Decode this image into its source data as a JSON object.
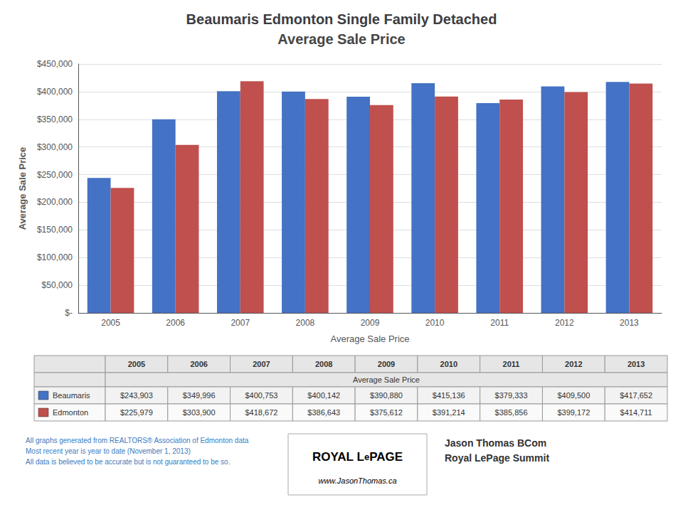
{
  "chart_data": {
    "type": "bar",
    "title": "Beaumaris Edmonton Single Family Detached",
    "subtitle": "Average Sale Price",
    "xlabel": "Average Sale Price",
    "ylabel": "Average Sale Price",
    "categories": [
      "2005",
      "2006",
      "2007",
      "2008",
      "2009",
      "2010",
      "2011",
      "2012",
      "2013"
    ],
    "series": [
      {
        "name": "Beaumaris",
        "color": "#4472C4",
        "values": [
          243903,
          349996,
          400753,
          400142,
          390880,
          415136,
          379333,
          409500,
          417652
        ],
        "value_labels": [
          "$243,903",
          "$349,996",
          "$400,753",
          "$400,142",
          "$390,880",
          "$415,136",
          "$379,333",
          "$409,500",
          "$417,652"
        ]
      },
      {
        "name": "Edmonton",
        "color": "#C0504D",
        "values": [
          225979,
          303900,
          418672,
          386643,
          375612,
          391214,
          385856,
          399172,
          414711
        ],
        "value_labels": [
          "$225,979",
          "$303,900",
          "$418,672",
          "$386,643",
          "$375,612",
          "$391,214",
          "$385,856",
          "$399,172",
          "$414,711"
        ]
      }
    ],
    "ylim": [
      0,
      450000
    ],
    "yticks": [
      {
        "value": 0,
        "label": "$-"
      },
      {
        "value": 50000,
        "label": "$50,000"
      },
      {
        "value": 100000,
        "label": "$100,000"
      },
      {
        "value": 150000,
        "label": "$150,000"
      },
      {
        "value": 200000,
        "label": "$200,000"
      },
      {
        "value": 250000,
        "label": "$250,000"
      },
      {
        "value": 300000,
        "label": "$300,000"
      },
      {
        "value": 350000,
        "label": "$350,000"
      },
      {
        "value": 400000,
        "label": "$400,000"
      },
      {
        "value": 450000,
        "label": "$450,000"
      }
    ],
    "grid": true,
    "annotations": {
      "footer": "All graphs generated from REALTORS® Association of Edmonton data\nMost recent year is year to date (November 1, 2013)\nAll data is believed to be accurate but is not guaranteed to be so.",
      "agent": "Jason Thomas BCom\nRoyal LePage Summit",
      "watermark": [
        "ROYAL L",
        "e",
        "PAGE",
        "www.JasonThomas.ca"
      ]
    }
  }
}
